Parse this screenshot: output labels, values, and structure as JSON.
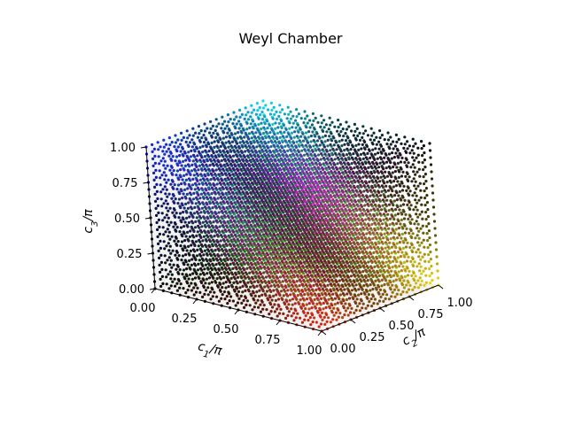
{
  "chart_data": {
    "type": "scatter",
    "subtype": "3d-scatter",
    "title": "Weyl Chamber",
    "x_axis": {
      "label_base": "c",
      "label_sub": "1",
      "label_suffix": "/π",
      "range": [
        0,
        1
      ],
      "ticks": [
        {
          "value": 0.0,
          "label": "0.00"
        },
        {
          "value": 0.25,
          "label": "0.25"
        },
        {
          "value": 0.5,
          "label": "0.50"
        },
        {
          "value": 0.75,
          "label": "0.75"
        },
        {
          "value": 1.0,
          "label": "1.00"
        }
      ]
    },
    "y_axis": {
      "label_base": "c",
      "label_sub": "2",
      "label_suffix": "/π",
      "range": [
        0,
        1
      ],
      "ticks": [
        {
          "value": 0.0,
          "label": "0.00"
        },
        {
          "value": 0.25,
          "label": "0.25"
        },
        {
          "value": 0.5,
          "label": "0.50"
        },
        {
          "value": 0.75,
          "label": "0.75"
        },
        {
          "value": 1.0,
          "label": "1.00"
        }
      ]
    },
    "z_axis": {
      "label_base": "c",
      "label_sub": "3",
      "label_suffix": "/π",
      "range": [
        0,
        1
      ],
      "ticks": [
        {
          "value": 0.0,
          "label": "0.00"
        },
        {
          "value": 0.25,
          "label": "0.25"
        },
        {
          "value": 0.5,
          "label": "0.50"
        },
        {
          "value": 0.75,
          "label": "0.75"
        },
        {
          "value": 1.0,
          "label": "1.00"
        }
      ]
    },
    "grid": "uniform lattice filling the unit cube [0,1]^3",
    "grid_steps": 20,
    "color_encoding": "point color varies with position (hue changes across the cube)",
    "palette": {
      "black": "#000000",
      "red": "#e02010",
      "green": "#10e010",
      "blue": "#1020e0",
      "yellow": "#f0e010",
      "magenta": "#e020e0",
      "cyan": "#10e0f0",
      "white": "#ffffff"
    }
  }
}
